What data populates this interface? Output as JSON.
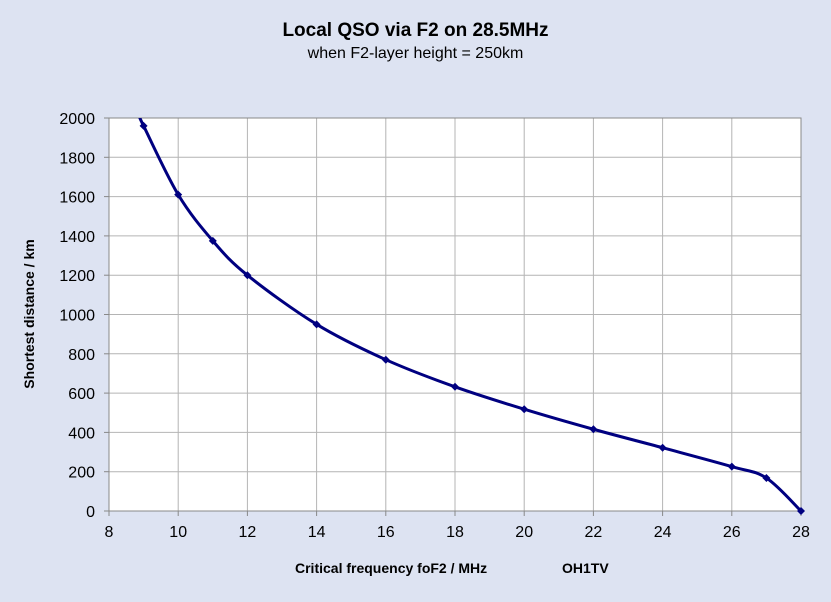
{
  "chart_data": {
    "type": "line",
    "title": "Local QSO via F2 on 28.5MHz",
    "subtitle": "when F2-layer height = 250km",
    "xlabel": "Critical frequency foF2 / MHz",
    "ylabel": "Shortest distance / km",
    "credit": "OH1TV",
    "xlim": [
      8,
      28
    ],
    "ylim": [
      0,
      2000
    ],
    "xticks": [
      8,
      10,
      12,
      14,
      16,
      18,
      20,
      22,
      24,
      26,
      28
    ],
    "yticks": [
      0,
      200,
      400,
      600,
      800,
      1000,
      1200,
      1400,
      1600,
      1800,
      2000
    ],
    "grid": true,
    "series": [
      {
        "name": "Shortest distance",
        "color": "#000080",
        "x": [
          9,
          10,
          11,
          12,
          14,
          16,
          18,
          20,
          22,
          24,
          26,
          27,
          28
        ],
        "y": [
          1960,
          1610,
          1375,
          1200,
          950,
          770,
          632,
          518,
          416,
          322,
          226,
          168,
          0
        ]
      }
    ]
  }
}
